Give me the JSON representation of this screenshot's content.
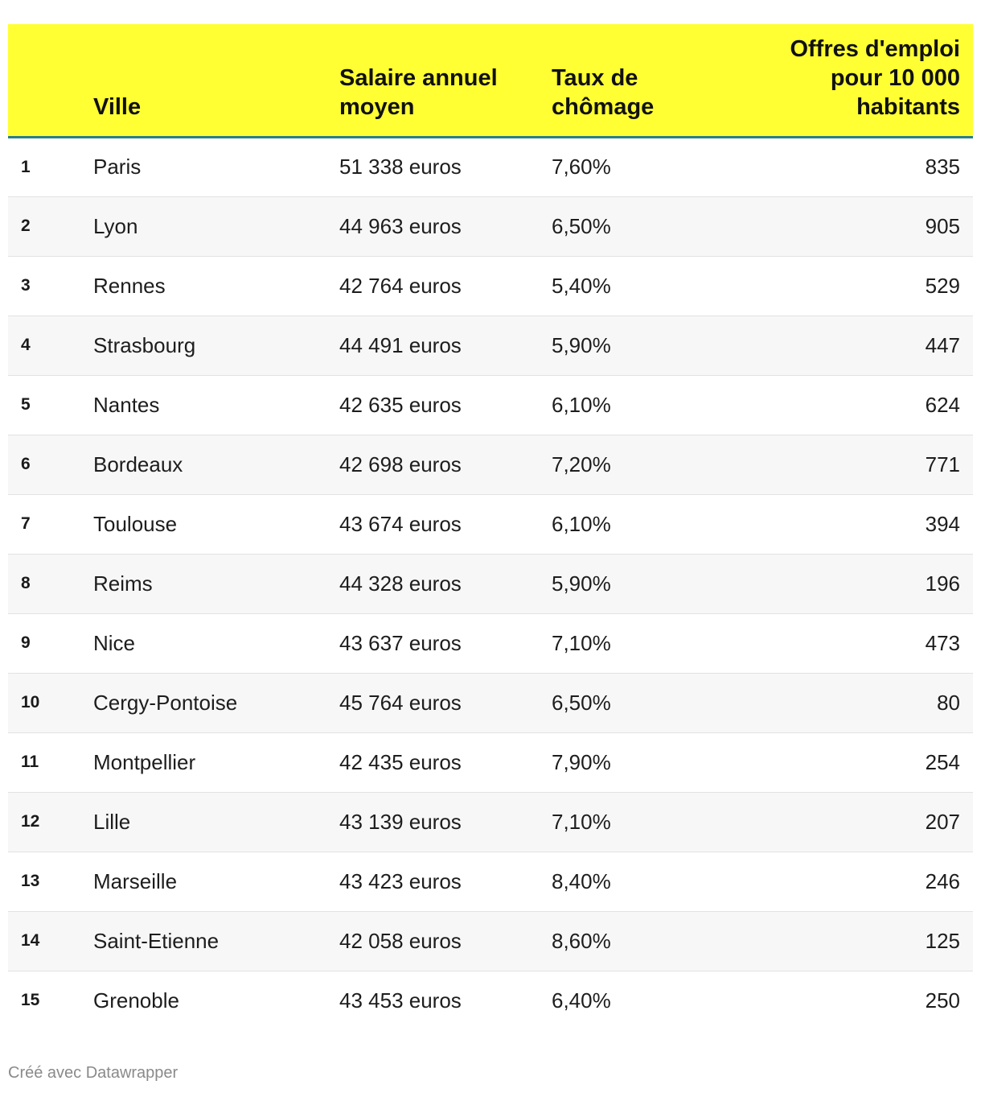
{
  "chart_data": {
    "type": "table",
    "columns": [
      "",
      "Ville",
      "Salaire annuel moyen",
      "Taux de chômage",
      "Offres d'emploi pour 10 000 habitants"
    ],
    "rows": [
      [
        "1",
        "Paris",
        "51 338 euros",
        "7,60%",
        "835"
      ],
      [
        "2",
        "Lyon",
        "44 963 euros",
        "6,50%",
        "905"
      ],
      [
        "3",
        "Rennes",
        "42 764 euros",
        "5,40%",
        "529"
      ],
      [
        "4",
        "Strasbourg",
        "44 491 euros",
        "5,90%",
        "447"
      ],
      [
        "5",
        "Nantes",
        "42 635 euros",
        "6,10%",
        "624"
      ],
      [
        "6",
        "Bordeaux",
        "42 698 euros",
        "7,20%",
        "771"
      ],
      [
        "7",
        "Toulouse",
        "43 674 euros",
        "6,10%",
        "394"
      ],
      [
        "8",
        "Reims",
        "44 328 euros",
        "5,90%",
        "196"
      ],
      [
        "9",
        "Nice",
        "43 637 euros",
        "7,10%",
        "473"
      ],
      [
        "10",
        "Cergy-Pontoise",
        "45 764 euros",
        "6,50%",
        "80"
      ],
      [
        "11",
        "Montpellier",
        "42 435 euros",
        "7,90%",
        "254"
      ],
      [
        "12",
        "Lille",
        "43 139 euros",
        "7,10%",
        "207"
      ],
      [
        "13",
        "Marseille",
        "43 423 euros",
        "8,40%",
        "246"
      ],
      [
        "14",
        "Saint-Etienne",
        "42 058 euros",
        "8,60%",
        "125"
      ],
      [
        "15",
        "Grenoble",
        "43 453 euros",
        "6,40%",
        "250"
      ]
    ]
  },
  "header": {
    "rank": "",
    "ville": "Ville",
    "salaire_line1": "Salaire annuel",
    "salaire_line2": "moyen",
    "taux_line1": "Taux de",
    "taux_line2": "chômage",
    "offres_line1": "Offres d'emploi",
    "offres_line2": "pour 10 000",
    "offres_line3": "habitants"
  },
  "footer": {
    "credit": "Créé avec Datawrapper"
  },
  "colors": {
    "header_background": "#ffff33",
    "header_rule": "#2a7d86",
    "zebra_row": "#f7f7f7"
  }
}
